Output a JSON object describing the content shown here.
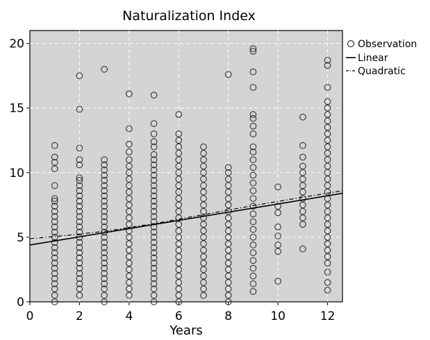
{
  "chart_data": {
    "type": "scatter",
    "title": "Naturalization Index",
    "xlabel": "Years",
    "ylabel": "",
    "xlim": [
      0,
      12.6
    ],
    "ylim": [
      0,
      21
    ],
    "xticks": [
      0,
      2,
      4,
      6,
      8,
      10,
      12
    ],
    "yticks": [
      0,
      5,
      10,
      15,
      20
    ],
    "grid": true,
    "legend_position": "top-right outside",
    "legend": [
      "Observation",
      "Linear",
      "Quadratic"
    ],
    "colors": {
      "plot_background": "#d4d4d4",
      "grid": "#ffffff",
      "marker": "#333333",
      "line": "#000000"
    },
    "series": [
      {
        "name": "Observation",
        "kind": "scatter",
        "points": [
          {
            "x": 1,
            "y": [
              0.0,
              0.5,
              1.0,
              1.4,
              1.8,
              2.2,
              2.6,
              3.0,
              3.4,
              3.8,
              4.2,
              4.6,
              5.0,
              5.4,
              5.8,
              6.2,
              6.6,
              7.0,
              7.4,
              7.8,
              8.0,
              9.0,
              10.3,
              10.8,
              11.2,
              12.1
            ]
          },
          {
            "x": 2,
            "y": [
              0.5,
              1.0,
              1.4,
              1.8,
              2.2,
              2.6,
              3.0,
              3.4,
              3.8,
              4.2,
              4.6,
              5.0,
              5.4,
              5.8,
              6.2,
              6.6,
              7.0,
              7.4,
              7.8,
              8.2,
              8.6,
              9.0,
              9.4,
              9.6,
              10.6,
              11.0,
              11.9,
              14.9,
              17.5
            ]
          },
          {
            "x": 3,
            "y": [
              0.0,
              0.5,
              1.0,
              1.4,
              1.8,
              2.2,
              2.6,
              3.0,
              3.4,
              3.8,
              4.2,
              4.6,
              5.0,
              5.4,
              5.8,
              6.2,
              6.6,
              7.0,
              7.4,
              7.8,
              8.2,
              8.6,
              9.0,
              9.4,
              9.8,
              10.2,
              10.6,
              11.0,
              18.0
            ]
          },
          {
            "x": 4,
            "y": [
              0.5,
              1.0,
              1.5,
              2.0,
              2.5,
              3.0,
              3.5,
              4.0,
              4.5,
              5.0,
              5.5,
              6.0,
              6.5,
              7.0,
              7.5,
              8.0,
              8.5,
              9.0,
              9.5,
              10.0,
              10.5,
              11.0,
              11.6,
              12.2,
              13.4,
              16.1
            ]
          },
          {
            "x": 5,
            "y": [
              0.0,
              0.5,
              1.0,
              1.4,
              1.8,
              2.2,
              2.6,
              3.0,
              3.4,
              3.8,
              4.2,
              4.6,
              5.0,
              5.4,
              5.8,
              6.2,
              6.6,
              7.0,
              7.4,
              7.8,
              8.2,
              8.6,
              9.0,
              9.4,
              9.8,
              10.2,
              10.6,
              11.0,
              11.4,
              12.0,
              12.4,
              13.0,
              13.8,
              16.0
            ]
          },
          {
            "x": 6,
            "y": [
              0.0,
              0.5,
              1.0,
              1.5,
              2.0,
              2.5,
              3.0,
              3.5,
              4.0,
              4.5,
              5.0,
              5.5,
              6.0,
              6.5,
              7.0,
              7.5,
              8.0,
              8.5,
              9.0,
              9.5,
              10.0,
              10.5,
              11.0,
              11.5,
              12.0,
              12.5,
              13.0,
              14.5
            ]
          },
          {
            "x": 7,
            "y": [
              0.5,
              1.0,
              1.5,
              2.0,
              2.5,
              3.0,
              3.5,
              4.0,
              4.5,
              5.0,
              5.5,
              6.0,
              6.5,
              7.0,
              7.5,
              8.0,
              8.5,
              9.0,
              9.5,
              10.0,
              10.5,
              11.0,
              11.5,
              12.0
            ]
          },
          {
            "x": 8,
            "y": [
              0.0,
              0.5,
              1.0,
              1.5,
              2.0,
              2.5,
              3.0,
              3.5,
              4.0,
              4.5,
              5.0,
              5.5,
              6.0,
              6.5,
              7.0,
              7.5,
              8.0,
              8.5,
              9.0,
              9.5,
              10.0,
              10.4,
              17.6
            ]
          },
          {
            "x": 9,
            "y": [
              0.8,
              1.4,
              2.0,
              2.6,
              3.2,
              3.8,
              4.4,
              5.0,
              5.6,
              6.2,
              6.8,
              7.4,
              8.0,
              8.6,
              9.2,
              9.8,
              10.4,
              11.0,
              11.6,
              12.0,
              13.0,
              13.6,
              14.2,
              14.5,
              16.6,
              17.8,
              19.4,
              19.6
            ]
          },
          {
            "x": 10,
            "y": [
              1.6,
              3.9,
              4.4,
              5.1,
              5.8,
              6.9,
              7.4,
              8.9
            ]
          },
          {
            "x": 11,
            "y": [
              4.1,
              6.0,
              6.5,
              7.0,
              7.5,
              8.0,
              8.5,
              9.0,
              9.5,
              10.0,
              10.5,
              11.2,
              12.1,
              14.3
            ]
          },
          {
            "x": 12,
            "y": [
              0.9,
              1.5,
              2.3,
              3.0,
              3.5,
              4.0,
              4.5,
              5.0,
              5.5,
              6.0,
              6.5,
              7.0,
              7.5,
              8.0,
              8.5,
              9.0,
              9.5,
              10.0,
              10.5,
              11.0,
              11.5,
              12.0,
              12.5,
              13.0,
              13.5,
              14.0,
              14.5,
              15.0,
              15.5,
              16.6,
              18.3,
              18.7
            ]
          }
        ]
      },
      {
        "name": "Linear",
        "kind": "line",
        "dash": "solid",
        "x": [
          0,
          12.6
        ],
        "y": [
          4.4,
          8.4
        ]
      },
      {
        "name": "Quadratic",
        "kind": "line",
        "dash": "dashdot",
        "x": [
          0,
          1,
          3,
          5,
          7,
          9,
          11,
          12.6
        ],
        "y": [
          4.9,
          5.05,
          5.45,
          6.05,
          6.75,
          7.45,
          8.1,
          8.6
        ]
      }
    ]
  }
}
